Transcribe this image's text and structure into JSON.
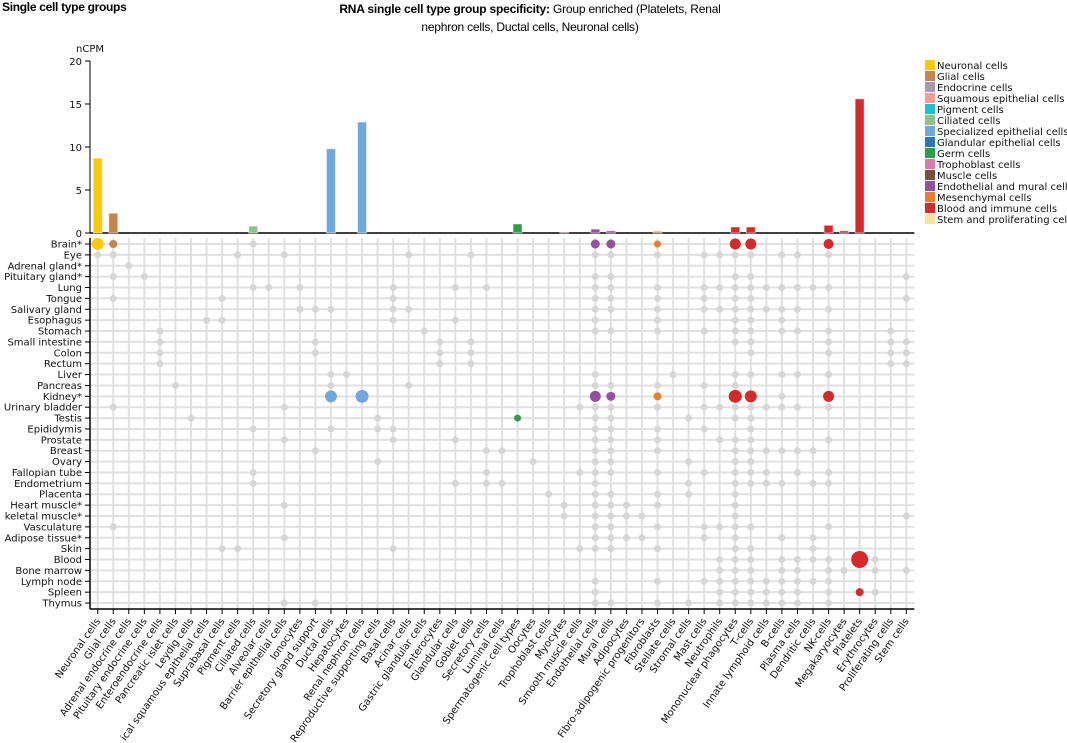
{
  "header": {
    "left_title": "Single cell type groups",
    "title_bold": "RNA single cell type group specificity:",
    "title_line1": "Group enriched (Platelets, Renal",
    "title_line2": "nephron cells, Ductal cells, Neuronal cells)"
  },
  "chart_data": {
    "type": "bar",
    "ylabel": "nCPM",
    "ylim": [
      0,
      20
    ],
    "yticks": [
      "0",
      "5",
      "10",
      "15",
      "20"
    ],
    "categories": [
      "Neuronal cells",
      "Glial cells",
      "Adrenal endocrine cells",
      "Pituitary endocrine cells",
      "Enteroendocrine cells",
      "Pancreatic islet cells",
      "Leydig cells",
      "ical squamous epithelial cells",
      "Suprabasal cells",
      "Pigment cells",
      "Ciliated cells",
      "Alveolar cells",
      "Barrier epithelial cells",
      "Ionocytes",
      "Secretory gland support",
      "Ductal cells",
      "Hepatocytes",
      "Renal nephron cells",
      "Reproductive supporting cells",
      "Basal cells",
      "Acinar cells",
      "Gastric glandular cells",
      "Enterocytes",
      "Glandular cells",
      "Goblet cells",
      "Secretory cells",
      "Luminal cells",
      "Spermatogenic cell types",
      "Oocytes",
      "Trophoblast cells",
      "Myocytes",
      "Smooth muscle cells",
      "Endothelial cells",
      "Mural cells",
      "Adipocytes",
      "Fibro-adipogenic progenitors",
      "Fibroblasts",
      "Stellate cells",
      "Stromal cells",
      "Mast cells",
      "Neutrophils",
      "Mononuclear phagocytes",
      "T-cells",
      "Innate lymphoid cells",
      "B-cells",
      "Plasma cells",
      "Dendritic cells",
      "NK-cells",
      "Megakaryocytes",
      "Platelets",
      "Erythrocytes",
      "Proliferating cells",
      "Stem cells"
    ],
    "category_group": [
      0,
      1,
      2,
      2,
      2,
      2,
      2,
      3,
      3,
      4,
      5,
      6,
      6,
      6,
      6,
      6,
      6,
      6,
      6,
      7,
      7,
      7,
      7,
      7,
      7,
      7,
      7,
      8,
      8,
      9,
      10,
      10,
      11,
      11,
      12,
      12,
      12,
      12,
      12,
      13,
      13,
      13,
      13,
      13,
      13,
      13,
      13,
      13,
      13,
      13,
      13,
      14,
      14
    ],
    "values": [
      8.7,
      2.3,
      0,
      0,
      0,
      0,
      0,
      0,
      0,
      0,
      0.8,
      0,
      0,
      0,
      0,
      9.8,
      0,
      12.9,
      0,
      0,
      0,
      0,
      0,
      0,
      0,
      0,
      0,
      1.05,
      0,
      0,
      0.1,
      0,
      0.45,
      0.25,
      0,
      0,
      0.2,
      0,
      0,
      0,
      0,
      0.7,
      0.7,
      0,
      0,
      0,
      0,
      0.9,
      0.25,
      15.6,
      0,
      0,
      0
    ],
    "legend": [
      {
        "label": "Neuronal cells",
        "color": "#fdc70a"
      },
      {
        "label": "Glial cells",
        "color": "#c4844a"
      },
      {
        "label": "Endocrine cells",
        "color": "#a996b4"
      },
      {
        "label": "Squamous epithelial cells",
        "color": "#f79a9a"
      },
      {
        "label": "Pigment cells",
        "color": "#1ec0cf"
      },
      {
        "label": "Ciliated cells",
        "color": "#8fbf8a"
      },
      {
        "label": "Specialized epithelial cells",
        "color": "#6fa8dc"
      },
      {
        "label": "Glandular epithelial cells",
        "color": "#2a77b4"
      },
      {
        "label": "Germ cells",
        "color": "#2ca048"
      },
      {
        "label": "Trophoblast cells",
        "color": "#de78b0"
      },
      {
        "label": "Muscle cells",
        "color": "#7b4f3a"
      },
      {
        "label": "Endothelial and mural cells",
        "color": "#944fa0"
      },
      {
        "label": "Mesenchymal cells",
        "color": "#e87e2a"
      },
      {
        "label": "Blood and immune cells",
        "color": "#d62a2a"
      },
      {
        "label": "Stem and proliferating cells",
        "color": "#f6e3a1"
      }
    ],
    "legend_placement": "right",
    "tissues": [
      "Brain*",
      "Eye",
      "Adrenal gland*",
      "Pituitary gland*",
      "Lung",
      "Tongue",
      "Salivary gland",
      "Esophagus",
      "Stomach",
      "Small intestine",
      "Colon",
      "Rectum",
      "Liver",
      "Pancreas",
      "Kidney*",
      "Urinary bladder",
      "Testis",
      "Epididymis",
      "Prostate",
      "Breast",
      "Ovary",
      "Fallopian tube",
      "Endometrium",
      "Placenta",
      "Heart muscle*",
      "keletal muscle*",
      "Vasculature",
      "Adipose tissue*",
      "Skin",
      "Blood",
      "Bone marrow",
      "Lymph node",
      "Spleen",
      "Thymus"
    ],
    "detected_dots": [
      [
        10
      ],
      [
        0,
        1,
        9,
        12,
        20,
        24,
        32,
        33,
        36,
        39,
        40,
        41,
        42,
        44,
        45,
        47
      ],
      [
        2
      ],
      [
        1,
        3,
        32,
        33,
        41,
        42,
        52
      ],
      [
        10,
        11,
        13,
        19,
        23,
        25,
        32,
        33,
        36,
        39,
        40,
        41,
        42,
        43,
        44,
        45,
        46,
        47
      ],
      [
        1,
        8,
        19,
        32,
        33,
        36,
        39,
        41,
        42,
        52
      ],
      [
        13,
        14,
        15,
        19,
        20,
        32,
        33,
        36,
        39,
        40,
        41,
        42,
        43,
        44,
        45,
        47
      ],
      [
        7,
        8,
        19,
        23,
        32,
        36,
        41,
        42,
        44
      ],
      [
        4,
        21,
        32,
        33,
        36,
        39,
        41,
        42,
        44,
        45,
        47,
        51
      ],
      [
        4,
        14,
        22,
        24,
        41,
        42,
        47,
        51,
        52
      ],
      [
        4,
        14,
        22,
        24,
        42,
        47,
        51,
        52
      ],
      [
        4,
        22,
        24,
        51,
        52
      ],
      [
        15,
        16,
        32,
        37,
        41,
        42,
        44,
        45,
        47
      ],
      [
        5,
        15,
        20,
        32,
        33,
        36,
        39,
        41
      ],
      [
        44
      ],
      [
        1,
        12,
        31,
        32,
        33,
        36,
        39,
        40,
        41,
        42,
        43,
        44,
        45,
        47
      ],
      [
        6,
        18,
        32,
        33,
        38,
        41,
        42
      ],
      [
        10,
        15,
        18,
        19,
        32,
        33,
        36,
        39,
        42
      ],
      [
        12,
        19,
        23,
        32,
        33,
        36,
        40,
        41,
        42,
        47
      ],
      [
        14,
        25,
        26,
        32,
        33,
        36,
        41,
        42,
        43,
        44,
        45,
        46
      ],
      [
        18,
        28,
        32,
        33,
        38,
        41,
        42
      ],
      [
        10,
        25,
        31,
        32,
        33,
        36,
        39,
        41,
        42,
        43,
        45,
        47
      ],
      [
        10,
        23,
        25,
        26,
        32,
        38,
        41,
        42,
        43,
        44,
        46,
        47
      ],
      [
        29,
        32,
        33,
        36,
        38,
        41
      ],
      [
        12,
        30,
        32,
        33,
        34,
        36,
        41
      ],
      [
        30,
        32,
        33,
        34,
        35,
        41,
        52
      ],
      [
        1,
        32,
        33,
        36,
        39,
        40,
        41,
        42,
        47
      ],
      [
        12,
        32,
        33,
        34,
        35,
        39,
        41,
        44,
        46
      ],
      [
        8,
        9,
        19,
        31,
        32,
        33,
        36,
        41,
        42,
        46
      ],
      [
        40,
        41,
        42,
        44,
        45,
        46,
        47,
        50
      ],
      [
        40,
        41,
        42,
        44,
        45,
        47,
        48,
        50,
        52
      ],
      [
        32,
        36,
        39,
        40,
        41,
        42,
        43,
        44,
        45,
        46,
        47
      ],
      [
        32,
        40,
        41,
        42,
        43,
        44,
        45,
        47,
        50
      ],
      [
        12,
        14,
        32,
        33,
        36,
        38,
        40,
        41,
        42,
        43,
        44,
        45,
        47
      ]
    ],
    "enriched_dots": [
      {
        "tissue": 0,
        "cell": 0,
        "level": 6
      },
      {
        "tissue": 0,
        "cell": 1,
        "level": 4
      },
      {
        "tissue": 0,
        "cell": 32,
        "level": 4.5
      },
      {
        "tissue": 0,
        "cell": 33,
        "level": 4.5
      },
      {
        "tissue": 0,
        "cell": 36,
        "level": 3.5
      },
      {
        "tissue": 0,
        "cell": 41,
        "level": 5.5
      },
      {
        "tissue": 0,
        "cell": 42,
        "level": 5.5
      },
      {
        "tissue": 0,
        "cell": 47,
        "level": 5
      },
      {
        "tissue": 14,
        "cell": 15,
        "level": 6
      },
      {
        "tissue": 14,
        "cell": 17,
        "level": 6.5
      },
      {
        "tissue": 14,
        "cell": 32,
        "level": 5.5
      },
      {
        "tissue": 14,
        "cell": 33,
        "level": 4.5
      },
      {
        "tissue": 14,
        "cell": 36,
        "level": 4
      },
      {
        "tissue": 14,
        "cell": 41,
        "level": 6.5
      },
      {
        "tissue": 14,
        "cell": 42,
        "level": 6
      },
      {
        "tissue": 14,
        "cell": 47,
        "level": 5.5
      },
      {
        "tissue": 16,
        "cell": 27,
        "level": 3.5
      },
      {
        "tissue": 29,
        "cell": 49,
        "level": 8.5
      },
      {
        "tissue": 32,
        "cell": 49,
        "level": 4
      }
    ]
  }
}
